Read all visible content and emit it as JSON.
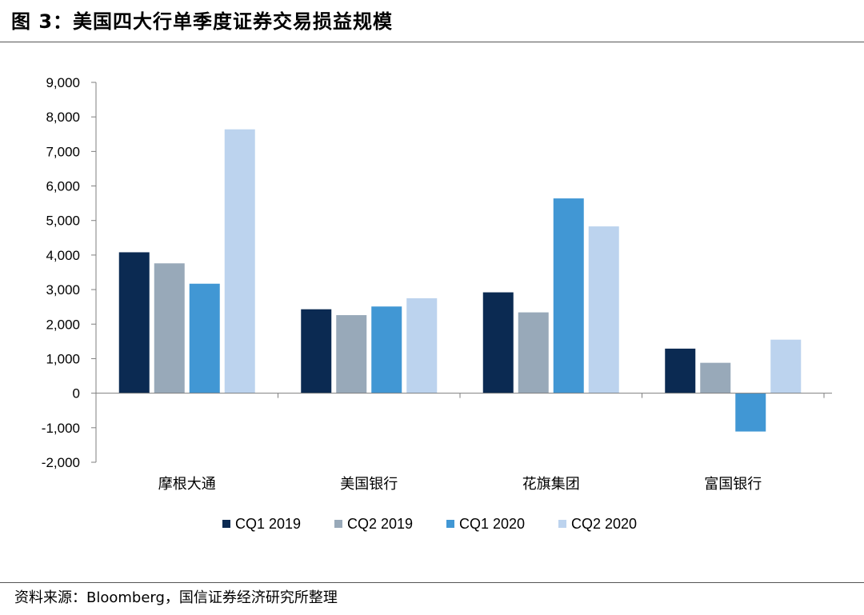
{
  "figure": {
    "title": "图 3：美国四大行单季度证券交易损益规模",
    "source": "资料来源：Bloomberg，国信证券经济研究所整理"
  },
  "chart_data": {
    "type": "bar",
    "title": "",
    "xlabel": "",
    "ylabel": "",
    "categories": [
      "摩根大通",
      "美国银行",
      "花旗集团",
      "富国银行"
    ],
    "series": [
      {
        "name": "CQ1 2019",
        "color": "#0b2a52",
        "values": [
          4080,
          2430,
          2920,
          1290
        ]
      },
      {
        "name": "CQ2 2019",
        "color": "#98a9b9",
        "values": [
          3760,
          2260,
          2340,
          880
        ]
      },
      {
        "name": "CQ1 2020",
        "color": "#4197d4",
        "values": [
          3170,
          2510,
          5640,
          -1110
        ]
      },
      {
        "name": "CQ2 2020",
        "color": "#bcd3ee",
        "values": [
          7640,
          2750,
          4830,
          1550
        ]
      }
    ],
    "ylim": [
      -2000,
      9000
    ],
    "yticks": [
      -2000,
      -1000,
      0,
      1000,
      2000,
      3000,
      4000,
      5000,
      6000,
      7000,
      8000,
      9000
    ],
    "ytick_labels": [
      "-2,000",
      "-1,000",
      "0",
      "1,000",
      "2,000",
      "3,000",
      "4,000",
      "5,000",
      "6,000",
      "7,000",
      "8,000",
      "9,000"
    ],
    "grid": false,
    "legend_position": "bottom"
  }
}
